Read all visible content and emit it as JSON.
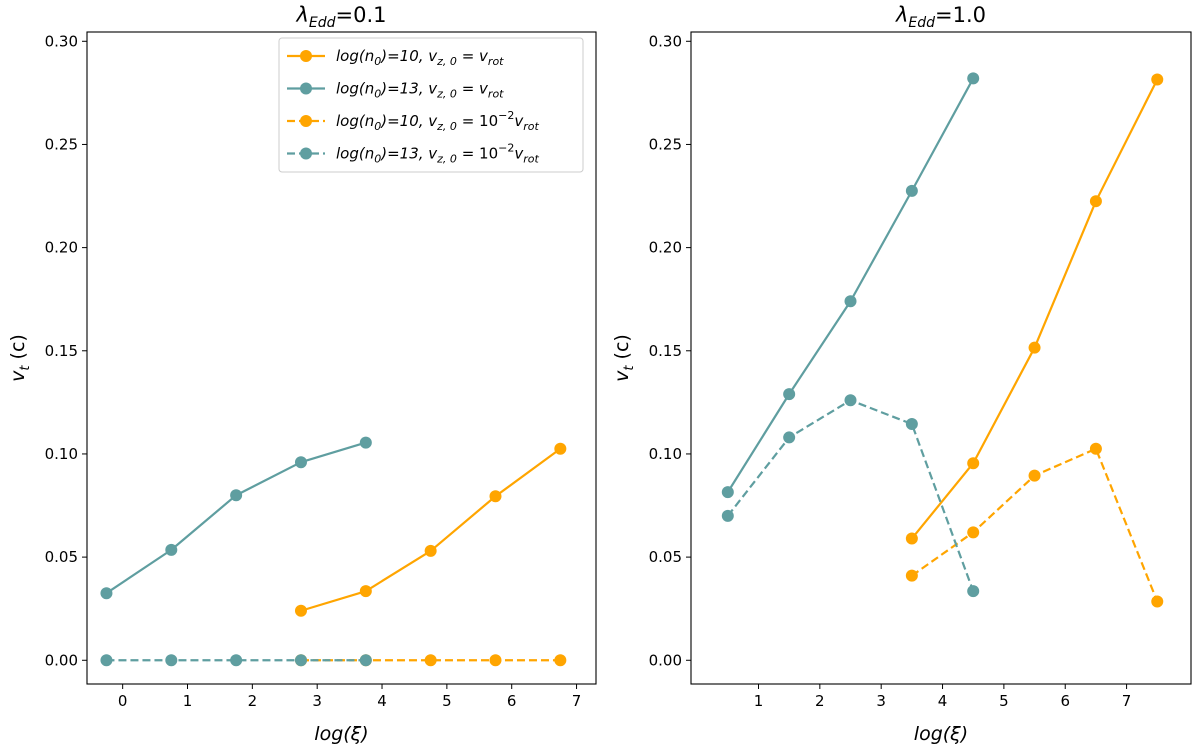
{
  "chart_data": [
    {
      "type": "line",
      "title_prefix": "λ",
      "title_sub": "Edd",
      "title_value": "=0.1",
      "xlabel": "log(ξ)",
      "ylabel_main": "v",
      "ylabel_sub": "t",
      "ylabel_unit": "(c)",
      "xlim": [
        -0.55,
        7.3
      ],
      "ylim": [
        -0.0115,
        0.3045
      ],
      "xticks": [
        0,
        1,
        2,
        3,
        4,
        5,
        6,
        7
      ],
      "yticks": [
        0.0,
        0.05,
        0.1,
        0.15,
        0.2,
        0.25,
        0.3
      ],
      "ytick_labels": [
        "0.00",
        "0.05",
        "0.10",
        "0.15",
        "0.20",
        "0.25",
        "0.30"
      ],
      "legend_position": "top-right",
      "series": [
        {
          "name": "log(n0)=10, vz,0 = vrot",
          "color": "#FFA500",
          "dash": "solid",
          "x": [
            2.75,
            3.75,
            4.75,
            5.75,
            6.75
          ],
          "y": [
            0.024,
            0.0335,
            0.053,
            0.0795,
            0.1025
          ]
        },
        {
          "name": "log(n0)=13, vz,0 = vrot",
          "color": "#5F9EA0",
          "dash": "solid",
          "x": [
            -0.25,
            0.75,
            1.75,
            2.75,
            3.75
          ],
          "y": [
            0.0325,
            0.0535,
            0.08,
            0.096,
            0.1055
          ]
        },
        {
          "name": "log(n0)=10, vz,0 = 10^-2 vrot",
          "color": "#FFA500",
          "dash": "dashed",
          "x": [
            2.75,
            3.75,
            4.75,
            5.75,
            6.75
          ],
          "y": [
            0.0,
            0.0,
            0.0,
            0.0,
            0.0
          ]
        },
        {
          "name": "log(n0)=13, vz,0 = 10^-2 vrot",
          "color": "#5F9EA0",
          "dash": "dashed",
          "x": [
            -0.25,
            0.75,
            1.75,
            2.75,
            3.75
          ],
          "y": [
            0.0,
            0.0,
            0.0,
            0.0,
            0.0
          ]
        }
      ]
    },
    {
      "type": "line",
      "title_prefix": "λ",
      "title_sub": "Edd",
      "title_value": "=1.0",
      "xlabel": "log(ξ)",
      "ylabel_main": "v",
      "ylabel_sub": "t",
      "ylabel_unit": "(c)",
      "xlim": [
        -0.1,
        8.05
      ],
      "ylim": [
        -0.0115,
        0.3045
      ],
      "xticks": [
        1,
        2,
        3,
        4,
        5,
        6,
        7
      ],
      "yticks": [
        0.0,
        0.05,
        0.1,
        0.15,
        0.2,
        0.25,
        0.3
      ],
      "ytick_labels": [
        "0.00",
        "0.05",
        "0.10",
        "0.15",
        "0.20",
        "0.25",
        "0.30"
      ],
      "legend_position": "none",
      "series": [
        {
          "name": "log(n0)=10, vz,0 = vrot",
          "color": "#FFA500",
          "dash": "solid",
          "x": [
            3.5,
            4.5,
            5.5,
            6.5,
            7.5
          ],
          "y": [
            0.059,
            0.0955,
            0.1515,
            0.2225,
            0.2815
          ]
        },
        {
          "name": "log(n0)=13, vz,0 = vrot",
          "color": "#5F9EA0",
          "dash": "solid",
          "x": [
            0.5,
            1.5,
            2.5,
            3.5,
            4.5
          ],
          "y": [
            0.0815,
            0.129,
            0.174,
            0.2275,
            0.282
          ]
        },
        {
          "name": "log(n0)=10, vz,0 = 10^-2 vrot",
          "color": "#FFA500",
          "dash": "dashed",
          "x": [
            3.5,
            4.5,
            5.5,
            6.5,
            7.5
          ],
          "y": [
            0.041,
            0.062,
            0.0895,
            0.1025,
            0.0285
          ]
        },
        {
          "name": "log(n0)=13, vz,0 = 10^-2 vrot",
          "color": "#5F9EA0",
          "dash": "dashed",
          "x": [
            0.5,
            1.5,
            2.5,
            3.5,
            4.5
          ],
          "y": [
            0.07,
            0.108,
            0.126,
            0.1145,
            0.0335
          ]
        }
      ]
    }
  ],
  "legend": {
    "entries": [
      {
        "prefix": "log(n",
        "sub0": "0",
        "mid": ")=10, v",
        "vsub": "z, 0",
        "eq": " = ",
        "coef": "",
        "sup": "",
        "vrot": "v",
        "vrotsub": "rot",
        "color": "#FFA500",
        "dash": "solid"
      },
      {
        "prefix": "log(n",
        "sub0": "0",
        "mid": ")=13, v",
        "vsub": "z, 0",
        "eq": " = ",
        "coef": "",
        "sup": "",
        "vrot": "v",
        "vrotsub": "rot",
        "color": "#5F9EA0",
        "dash": "solid"
      },
      {
        "prefix": "log(n",
        "sub0": "0",
        "mid": ")=10, v",
        "vsub": "z, 0",
        "eq": " = ",
        "coef": "10",
        "sup": "−2",
        "vrot": "v",
        "vrotsub": "rot",
        "color": "#FFA500",
        "dash": "dashed"
      },
      {
        "prefix": "log(n",
        "sub0": "0",
        "mid": ")=13, v",
        "vsub": "z, 0",
        "eq": " = ",
        "coef": "10",
        "sup": "−2",
        "vrot": "v",
        "vrotsub": "rot",
        "color": "#5F9EA0",
        "dash": "dashed"
      }
    ]
  }
}
